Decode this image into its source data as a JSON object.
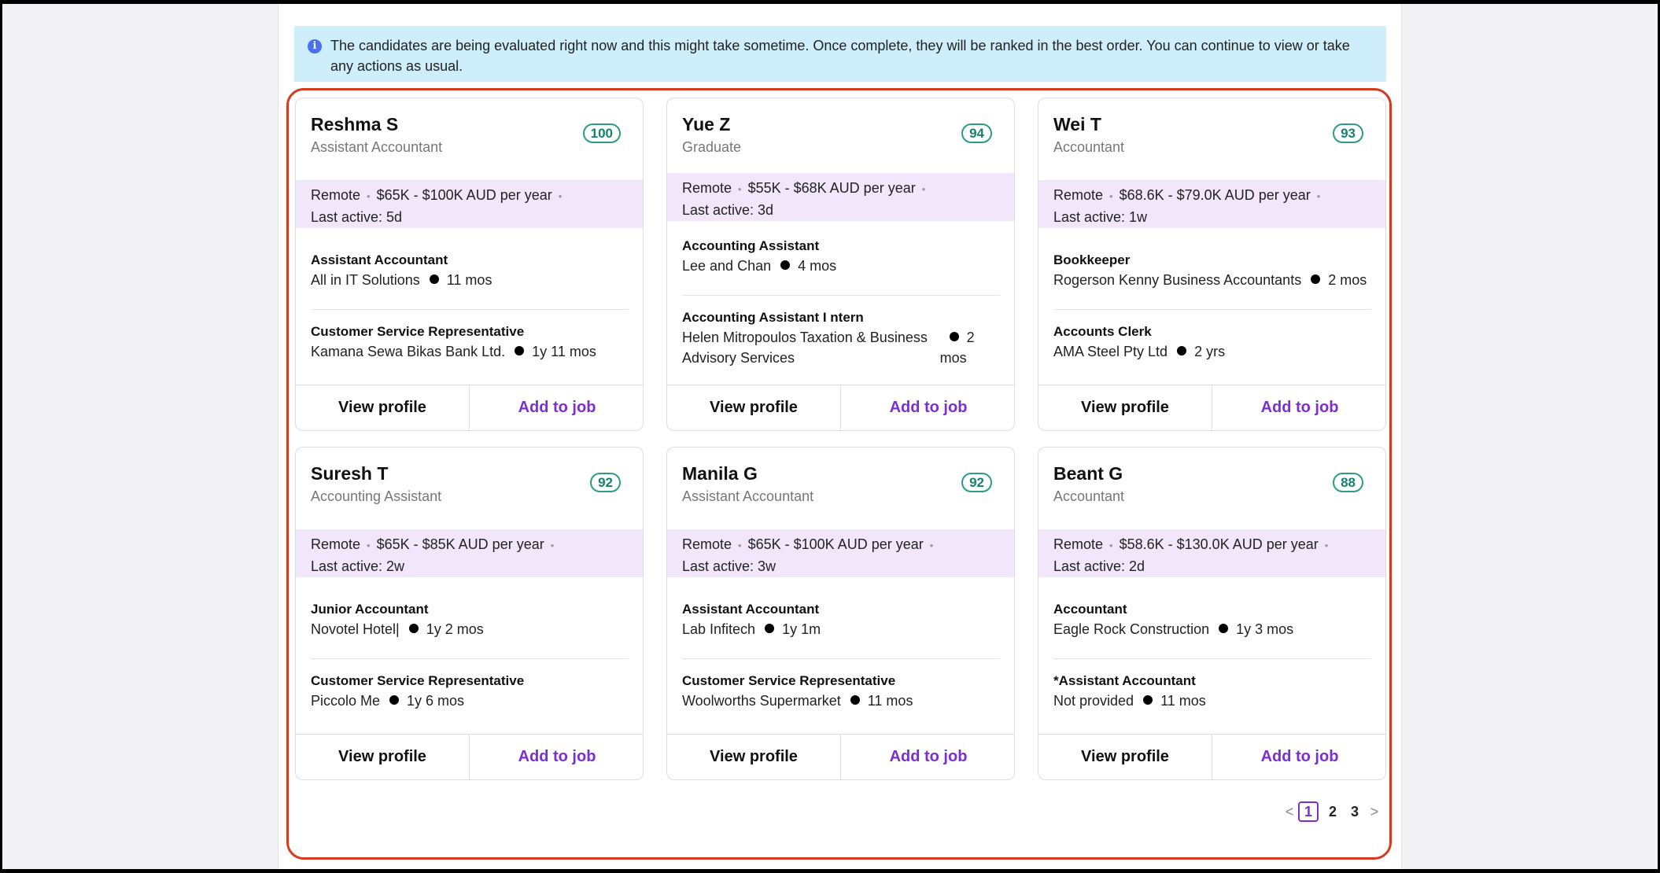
{
  "banner": {
    "icon": "info-icon",
    "text": "The candidates are being evaluated right now and this might take sometime. Once complete, they will be ranked in the best order. You can continue to view or take any actions as usual."
  },
  "candidates": [
    {
      "name": "Reshma S",
      "title": "Assistant Accountant",
      "score": "100",
      "location": "Remote",
      "salary": "$65K - $100K AUD per year",
      "last_active": "Last active: 5d",
      "jobs": [
        {
          "title": "Assistant Accountant",
          "company": "All in IT Solutions",
          "duration": "11 mos"
        },
        {
          "title": "Customer Service Representative",
          "company": "Kamana Sewa Bikas Bank Ltd.",
          "duration": "1y 11 mos"
        }
      ],
      "view_label": "View profile",
      "add_label": "Add to job"
    },
    {
      "name": "Yue Z",
      "title": "Graduate",
      "score": "94",
      "location": "Remote",
      "salary": "$55K - $68K AUD per year",
      "last_active": "Last active: 3d",
      "jobs": [
        {
          "title": "Accounting Assistant",
          "company": "Lee and Chan",
          "duration": "4 mos"
        },
        {
          "title": "Accounting Assistant I ntern",
          "company": "Helen Mitropoulos Taxation & Business Advisory Services",
          "duration": "2 mos"
        }
      ],
      "view_label": "View profile",
      "add_label": "Add to job"
    },
    {
      "name": "Wei T",
      "title": "Accountant",
      "score": "93",
      "location": "Remote",
      "salary": "$68.6K - $79.0K AUD per year",
      "last_active": "Last active: 1w",
      "jobs": [
        {
          "title": "Bookkeeper",
          "company": "Rogerson Kenny Business Accountants",
          "duration": "2 mos"
        },
        {
          "title": "Accounts Clerk",
          "company": "AMA Steel Pty Ltd",
          "duration": "2 yrs"
        }
      ],
      "view_label": "View profile",
      "add_label": "Add to job"
    },
    {
      "name": "Suresh T",
      "title": "Accounting Assistant",
      "score": "92",
      "location": "Remote",
      "salary": "$65K - $85K AUD per year",
      "last_active": "Last active: 2w",
      "jobs": [
        {
          "title": "Junior Accountant",
          "company": "Novotel Hotel|",
          "duration": "1y 2 mos"
        },
        {
          "title": "Customer Service Representative",
          "company": "Piccolo Me",
          "duration": "1y 6 mos"
        }
      ],
      "view_label": "View profile",
      "add_label": "Add to job"
    },
    {
      "name": "Manila G",
      "title": "Assistant Accountant",
      "score": "92",
      "location": "Remote",
      "salary": "$65K - $100K AUD per year",
      "last_active": "Last active: 3w",
      "jobs": [
        {
          "title": "Assistant Accountant",
          "company": "Lab Infitech",
          "duration": "1y 1m"
        },
        {
          "title": "Customer Service Representative",
          "company": "Woolworths Supermarket",
          "duration": "11 mos"
        }
      ],
      "view_label": "View profile",
      "add_label": "Add to job"
    },
    {
      "name": "Beant G",
      "title": "Accountant",
      "score": "88",
      "location": "Remote",
      "salary": "$58.6K - $130.0K AUD per year",
      "last_active": "Last active: 2d",
      "jobs": [
        {
          "title": "Accountant",
          "company": "Eagle Rock Construction",
          "duration": "1y 3 mos"
        },
        {
          "title": "*Assistant Accountant",
          "company": "Not provided",
          "duration": "11 mos"
        }
      ],
      "view_label": "View profile",
      "add_label": "Add to job"
    }
  ],
  "pagination": {
    "prev": "<",
    "next": ">",
    "pages": [
      "1",
      "2",
      "3"
    ],
    "current": "1"
  }
}
